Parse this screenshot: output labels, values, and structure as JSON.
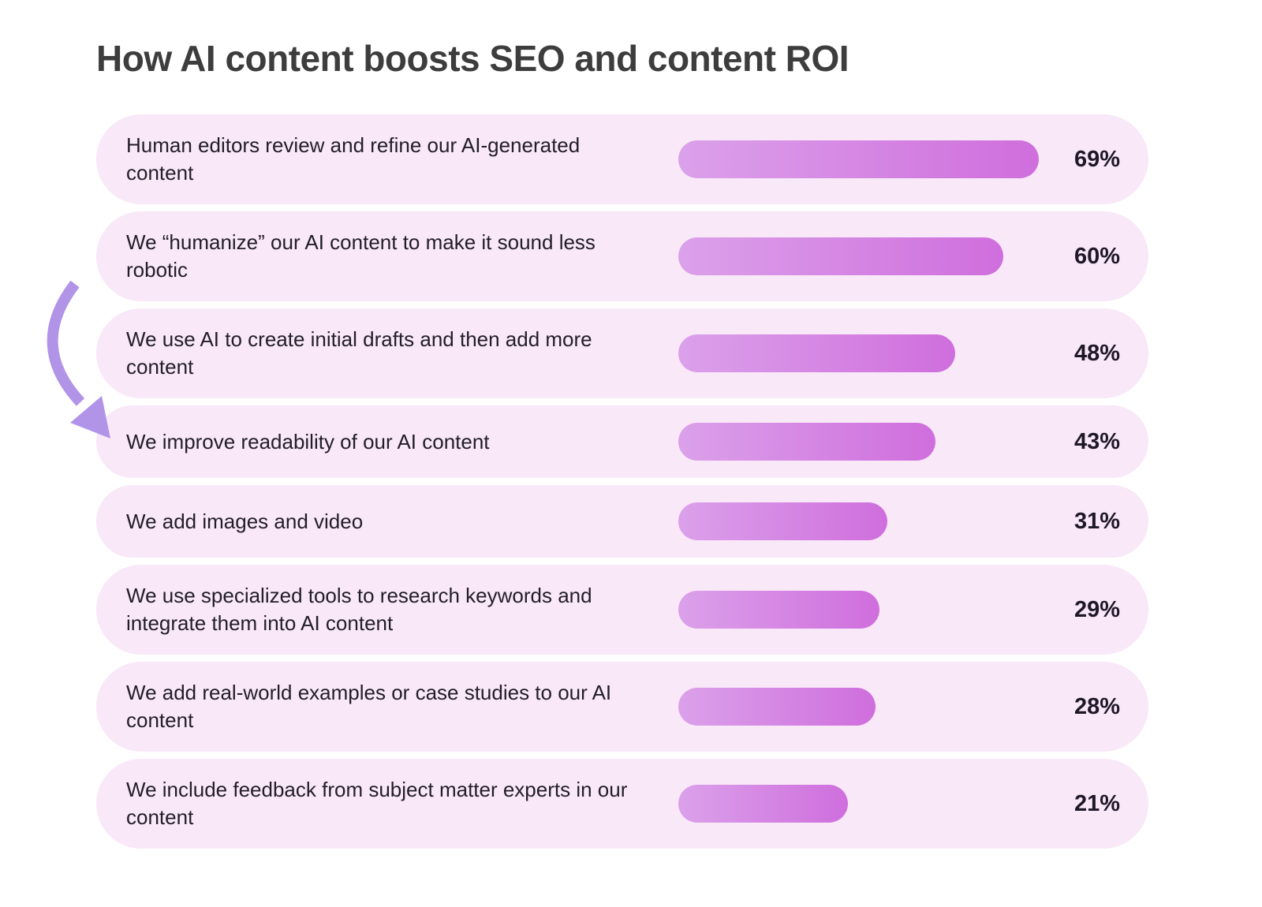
{
  "chart_data": {
    "type": "bar",
    "orientation": "horizontal",
    "title": "How AI content boosts SEO and content ROI",
    "unit": "%",
    "xlim": [
      0,
      100
    ],
    "grid": false,
    "legend": "none",
    "categories": [
      "Human editors review and refine our AI-generated content",
      "We “humanize” our AI content to make it sound less robotic",
      "We use AI to create initial drafts and then add more content",
      "We improve readability of our AI content",
      "We add images and video",
      "We use specialized tools to research keywords and integrate them into AI content",
      "We add real-world examples or case studies to our AI content",
      "We include feedback from subject matter experts in our content"
    ],
    "values": [
      69,
      60,
      48,
      43,
      31,
      29,
      28,
      21
    ],
    "value_labels": [
      "69%",
      "60%",
      "48%",
      "43%",
      "31%",
      "29%",
      "28%",
      "21%"
    ],
    "colors": {
      "page_background": "#ffffff",
      "row_background": "#f9e8f8",
      "bar_gradient_start": "#dba1ea",
      "bar_gradient_end": "#cf6edd",
      "title_text": "#3d3d3d",
      "label_text": "#221d2b",
      "value_text": "#1e1828",
      "arrow": "#b194e8"
    },
    "annotation": {
      "type": "curved-arrow",
      "target": "We improve readability of our AI content",
      "target_index": 3
    }
  }
}
